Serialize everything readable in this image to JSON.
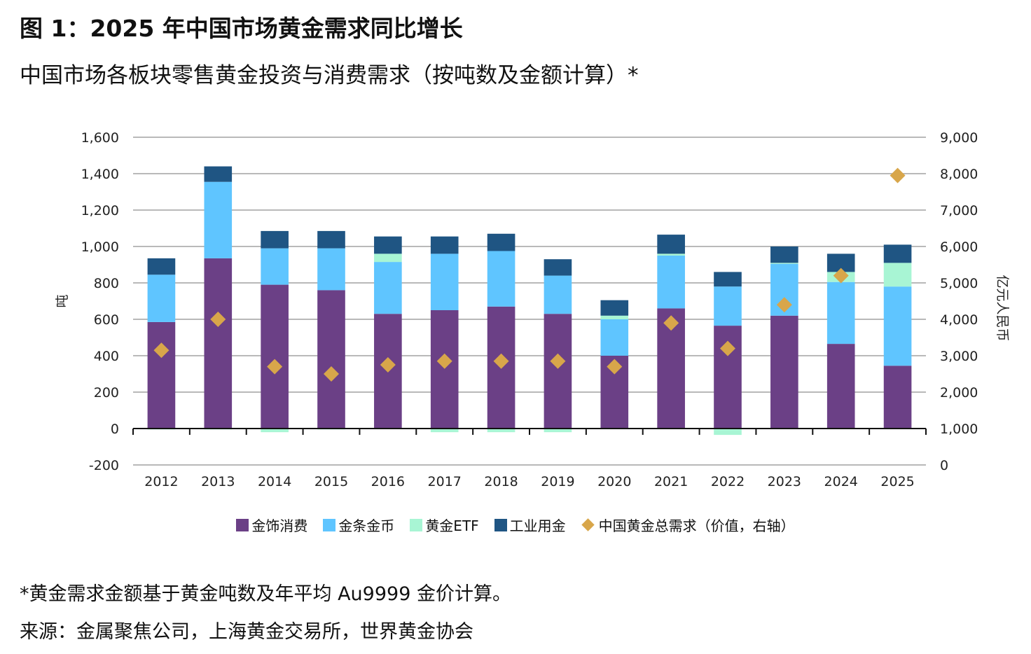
{
  "title": "图 1：2025 年中国市场黄金需求同比增长",
  "subtitle": "中国市场各板块零售黄金投资与消费需求（按吨数及金额计算）*",
  "note": "*黄金需求金额基于黄金吨数及年平均 Au9999 金价计算。",
  "source": "来源：金属聚焦公司，上海黄金交易所，世界黄金协会",
  "colors": {
    "jewellery": "#6b4086",
    "bar_coin": "#5fc5ff",
    "etf": "#a8f5d4",
    "industrial": "#1f5583",
    "value": "#d8a64a"
  },
  "chart_data": {
    "type": "bar",
    "stacked": true,
    "categories": [
      "2012",
      "2013",
      "2014",
      "2015",
      "2016",
      "2017",
      "2018",
      "2019",
      "2020",
      "2021",
      "2022",
      "2023",
      "2024",
      "2025"
    ],
    "ylabel": "吨",
    "ylabel_right": "亿元人民币",
    "ylim": [
      -200,
      1600
    ],
    "ylim_right": [
      0,
      9000
    ],
    "yticks": [
      "1,600",
      "1,400",
      "1,200",
      "1,000",
      "800",
      "600",
      "400",
      "200",
      "0",
      "-200"
    ],
    "yticks_right": [
      "9,000",
      "8,000",
      "7,000",
      "6,000",
      "5,000",
      "4,000",
      "3,000",
      "2,000",
      "1,000",
      "0"
    ],
    "series": [
      {
        "name": "金饰消费",
        "key": "jewellery",
        "values": [
          585,
          935,
          790,
          760,
          630,
          650,
          670,
          630,
          400,
          660,
          565,
          620,
          465,
          345
        ]
      },
      {
        "name": "金条金币",
        "key": "bar_coin",
        "values": [
          260,
          420,
          200,
          230,
          285,
          310,
          305,
          210,
          200,
          290,
          215,
          285,
          340,
          435
        ]
      },
      {
        "name": "黄金ETF",
        "key": "etf",
        "values": [
          -5,
          -5,
          -20,
          -5,
          45,
          -20,
          -20,
          -20,
          20,
          10,
          -35,
          5,
          55,
          130
        ]
      },
      {
        "name": "工业用金",
        "key": "industrial",
        "values": [
          90,
          85,
          95,
          95,
          95,
          95,
          95,
          90,
          85,
          105,
          80,
          90,
          100,
          100
        ]
      },
      {
        "name": "中国黄金总需求（价值，右轴）",
        "key": "value",
        "type": "scatter",
        "axis": "right",
        "values": [
          3150,
          4000,
          2700,
          2500,
          2750,
          2850,
          2850,
          2850,
          2700,
          3900,
          3200,
          4400,
          5200,
          7950
        ]
      }
    ]
  }
}
